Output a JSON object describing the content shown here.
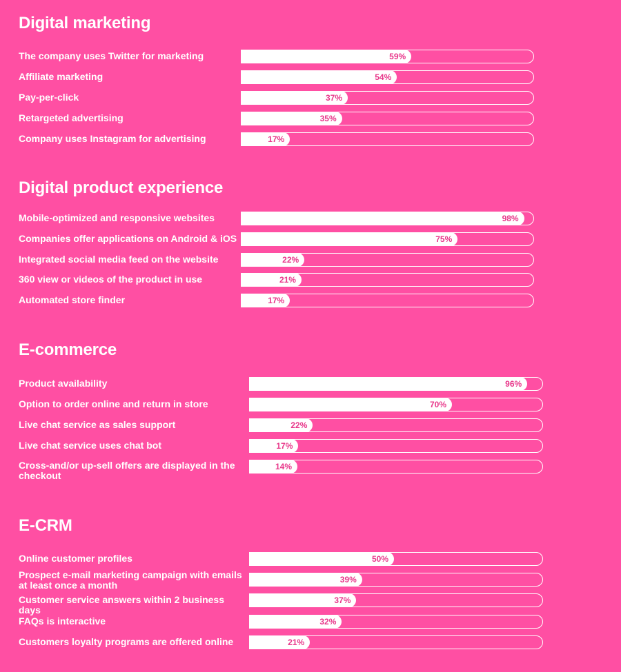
{
  "colors": {
    "background": "#ff4fa3",
    "bar": "#ffffff",
    "value_text": "#e8378a"
  },
  "chart_data": [
    {
      "type": "bar",
      "orientation": "horizontal",
      "title": "Digital marketing",
      "xlim": [
        0,
        100
      ],
      "categories": [
        "The company uses Twitter for marketing",
        "Affiliate marketing",
        "Pay-per-click",
        "Retargeted advertising",
        "Company uses Instagram for advertising"
      ],
      "values": [
        59,
        54,
        37,
        35,
        17
      ],
      "labels": [
        "59%",
        "54%",
        "37%",
        "35%",
        "17%"
      ]
    },
    {
      "type": "bar",
      "orientation": "horizontal",
      "title": "Digital product experience",
      "xlim": [
        0,
        100
      ],
      "categories": [
        "Mobile-optimized and responsive websites",
        "Companies offer applications on Android & iOS",
        "Integrated social media feed on the website",
        "360 view or videos of the product in use",
        "Automated store finder"
      ],
      "values": [
        98,
        75,
        22,
        21,
        17
      ],
      "labels": [
        "98%",
        "75%",
        "22%",
        "21%",
        "17%"
      ]
    },
    {
      "type": "bar",
      "orientation": "horizontal",
      "title": "E-commerce",
      "xlim": [
        0,
        100
      ],
      "categories": [
        "Product availability",
        "Option to order online and return in store",
        "Live chat service as sales support",
        "Live chat service uses chat bot",
        "Cross-and/or up-sell offers are displayed in the checkout"
      ],
      "values": [
        96,
        70,
        22,
        17,
        14
      ],
      "labels": [
        "96%",
        "70%",
        "22%",
        "17%",
        "14%"
      ]
    },
    {
      "type": "bar",
      "orientation": "horizontal",
      "title": "E-CRM",
      "xlim": [
        0,
        100
      ],
      "categories": [
        "Online customer profiles",
        "Prospect e-mail marketing campaign with emails at least once a month",
        "Customer service answers within 2 business days",
        "FAQs is interactive",
        "Customers loyalty programs are offered online"
      ],
      "values": [
        50,
        39,
        37,
        32,
        21
      ],
      "labels": [
        "50%",
        "39%",
        "37%",
        "32%",
        "21%"
      ]
    }
  ]
}
